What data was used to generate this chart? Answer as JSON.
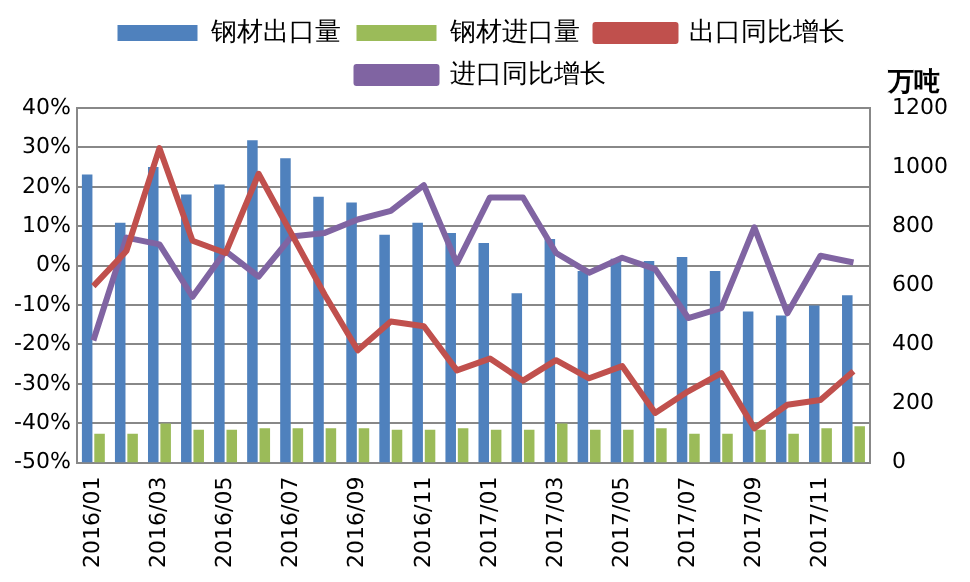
{
  "chart_data": {
    "type": "bar",
    "y2label": "万吨",
    "categories": [
      "2016/01",
      null,
      "2016/03",
      null,
      "2016/05",
      null,
      "2016/07",
      null,
      "2016/09",
      null,
      "2016/11",
      null,
      "2017/01",
      null,
      "2017/03",
      null,
      "2017/05",
      null,
      "2017/07",
      null,
      "2017/09",
      null,
      "2017/11",
      null
    ],
    "series": [
      {
        "name": "钢材出口量",
        "axis": "y2",
        "color": "#4f81bd",
        "values": [
          975,
          812,
          1000,
          907,
          941,
          1091,
          1030,
          900,
          880,
          771,
          812,
          777,
          743,
          573,
          757,
          648,
          690,
          682,
          696,
          648,
          511,
          498,
          532,
          566
        ]
      },
      {
        "name": "钢材进口量",
        "axis": "y2",
        "color": "#9bbb59",
        "values": [
          98,
          98,
          132,
          111,
          111,
          116,
          116,
          116,
          116,
          111,
          111,
          116,
          111,
          111,
          132,
          111,
          111,
          116,
          98,
          98,
          111,
          98,
          116,
          123
        ]
      },
      {
        "name": "出口同比增长",
        "type": "line",
        "color": "#c0504d",
        "values": [
          -5.2,
          3.7,
          29.8,
          6.3,
          3.2,
          23.3,
          8,
          -7.4,
          -21.5,
          -14.2,
          -15.4,
          -26.6,
          -23.6,
          -29.2,
          -24,
          -28.6,
          -25.5,
          -37.4,
          -31.9,
          -27.3,
          -41.3,
          -35.3,
          -34.1,
          -26.8
        ]
      },
      {
        "name": "进口同比增长",
        "type": "line",
        "color": "#8064a2",
        "values": [
          -19,
          7.1,
          5.4,
          -7.9,
          3.7,
          -2.8,
          7.4,
          8.3,
          11.7,
          13.9,
          20.4,
          0.6,
          17.3,
          17.3,
          3.2,
          -1.8,
          2,
          -0.9,
          -13.3,
          -10.8,
          9.7,
          -12.1,
          2.5,
          0.8
        ]
      }
    ],
    "ylim": [
      -50,
      40
    ],
    "yticks": [
      {
        "value": -50,
        "label": "-50%"
      },
      {
        "value": -40,
        "label": "-40%"
      },
      {
        "value": -30,
        "label": "-30%"
      },
      {
        "value": -20,
        "label": "-20%"
      },
      {
        "value": -10,
        "label": "-10%"
      },
      {
        "value": 0,
        "label": "0%"
      },
      {
        "value": 10,
        "label": "10%"
      },
      {
        "value": 20,
        "label": "20%"
      },
      {
        "value": 30,
        "label": "30%"
      },
      {
        "value": 40,
        "label": "40%"
      }
    ],
    "y2lim": [
      0,
      1200
    ],
    "y2ticks": [
      0,
      200,
      400,
      600,
      800,
      1000,
      1200
    ],
    "grid": "y",
    "legend": "top",
    "marker": "none"
  }
}
